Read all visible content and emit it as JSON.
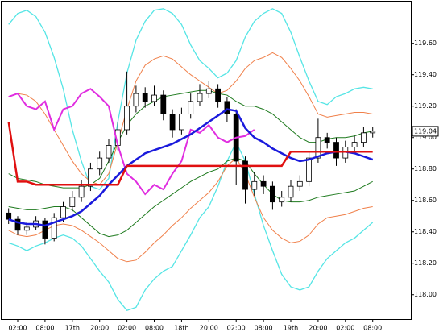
{
  "chart_data": {
    "type": "candlestick",
    "categories": [
      null,
      "02:00",
      null,
      null,
      "08:00",
      null,
      null,
      "17th",
      null,
      null,
      "20:00",
      null,
      null,
      "02:00",
      null,
      null,
      "08:00",
      null,
      null,
      "18th",
      null,
      null,
      "20:00",
      null,
      null,
      "02:00",
      null,
      null,
      "08:00",
      null,
      null,
      "19th",
      null,
      null,
      "20:00",
      null,
      null,
      "02:00",
      null,
      null,
      "08:00"
    ],
    "open": [
      118.52,
      118.48,
      118.41,
      118.43,
      118.47,
      118.36,
      118.49,
      118.56,
      118.62,
      118.69,
      118.8,
      118.87,
      118.95,
      119.05,
      119.2,
      119.28,
      119.23,
      119.27,
      119.15,
      119.05,
      119.15,
      119.23,
      119.28,
      119.31,
      119.23,
      119.15,
      118.85,
      118.67,
      118.72,
      118.69,
      118.59,
      118.62,
      118.69,
      118.72,
      118.87,
      119.0,
      118.97,
      118.87,
      118.94,
      118.97,
      119.03
    ],
    "high": [
      118.55,
      118.5,
      118.46,
      118.5,
      118.49,
      118.52,
      118.59,
      118.66,
      118.73,
      118.84,
      118.91,
      118.99,
      119.1,
      119.42,
      119.33,
      119.32,
      119.33,
      119.3,
      119.18,
      119.19,
      119.28,
      119.34,
      119.36,
      119.34,
      119.26,
      119.18,
      118.88,
      118.78,
      118.76,
      118.72,
      118.66,
      118.73,
      118.76,
      118.91,
      119.12,
      119.03,
      119.0,
      118.98,
      119.01,
      119.07,
      119.07
    ],
    "low": [
      118.45,
      118.38,
      118.38,
      118.41,
      118.32,
      118.34,
      118.46,
      118.53,
      118.59,
      118.66,
      118.76,
      118.84,
      118.92,
      119.02,
      119.16,
      119.19,
      119.2,
      119.11,
      119.0,
      119.02,
      119.12,
      119.2,
      119.25,
      119.19,
      119.1,
      118.7,
      118.58,
      118.63,
      118.64,
      118.54,
      118.56,
      118.59,
      118.66,
      118.69,
      118.84,
      118.93,
      118.82,
      118.84,
      118.91,
      118.94,
      119.0
    ],
    "close": [
      118.48,
      118.41,
      118.43,
      118.47,
      118.36,
      118.49,
      118.56,
      118.62,
      118.69,
      118.8,
      118.87,
      118.95,
      119.05,
      119.2,
      119.28,
      119.23,
      119.27,
      119.15,
      119.05,
      119.15,
      119.23,
      119.28,
      119.31,
      119.23,
      119.15,
      118.85,
      118.67,
      118.72,
      118.69,
      118.59,
      118.62,
      118.69,
      118.72,
      118.87,
      119.0,
      118.97,
      118.87,
      118.94,
      118.97,
      119.03,
      119.04
    ],
    "up_color": "#ffffff",
    "down_color": "#000000",
    "series": [
      {
        "color": "#55e5e5",
        "width": 1.3,
        "values": [
          119.72,
          119.79,
          119.81,
          119.77,
          119.67,
          119.51,
          119.31,
          119.05,
          118.85,
          118.69,
          118.67,
          118.74,
          119.1,
          119.41,
          119.62,
          119.74,
          119.81,
          119.82,
          119.79,
          119.72,
          119.59,
          119.49,
          119.44,
          119.38,
          119.41,
          119.49,
          119.64,
          119.74,
          119.79,
          119.82,
          119.79,
          119.67,
          119.51,
          119.36,
          119.23,
          119.21,
          119.26,
          119.28,
          119.31,
          119.32,
          119.31
        ]
      },
      {
        "color": "#55e5e5",
        "width": 1.3,
        "values": [
          118.33,
          118.31,
          118.28,
          118.31,
          118.33,
          118.36,
          118.38,
          118.36,
          118.31,
          118.23,
          118.15,
          118.08,
          117.97,
          117.9,
          117.92,
          118.03,
          118.1,
          118.15,
          118.18,
          118.28,
          118.38,
          118.49,
          118.56,
          118.69,
          118.85,
          118.97,
          118.85,
          118.64,
          118.44,
          118.28,
          118.13,
          118.05,
          118.03,
          118.05,
          118.15,
          118.23,
          118.28,
          118.33,
          118.36,
          118.41,
          118.46
        ]
      },
      {
        "color": "#f0804a",
        "width": 1,
        "values": [
          119.26,
          119.28,
          119.27,
          119.23,
          119.15,
          119.05,
          118.95,
          118.85,
          118.77,
          118.72,
          118.7,
          118.77,
          118.97,
          119.18,
          119.36,
          119.46,
          119.5,
          119.52,
          119.5,
          119.45,
          119.4,
          119.36,
          119.32,
          119.28,
          119.3,
          119.36,
          119.44,
          119.49,
          119.51,
          119.54,
          119.51,
          119.44,
          119.36,
          119.26,
          119.15,
          119.13,
          119.14,
          119.15,
          119.16,
          119.16,
          119.15
        ]
      },
      {
        "color": "#f0804a",
        "width": 1,
        "values": [
          118.41,
          118.38,
          118.37,
          118.38,
          118.41,
          118.44,
          118.45,
          118.44,
          118.41,
          118.37,
          118.33,
          118.28,
          118.23,
          118.21,
          118.22,
          118.27,
          118.33,
          118.38,
          118.44,
          118.49,
          118.55,
          118.6,
          118.65,
          118.72,
          118.82,
          118.87,
          118.77,
          118.62,
          118.49,
          118.41,
          118.36,
          118.33,
          118.34,
          118.38,
          118.45,
          118.49,
          118.5,
          118.51,
          118.53,
          118.55,
          118.56
        ]
      },
      {
        "color": "#1e7a1e",
        "width": 1,
        "values": [
          118.77,
          118.74,
          118.73,
          118.72,
          118.7,
          118.69,
          118.68,
          118.68,
          118.68,
          118.7,
          118.74,
          118.85,
          118.97,
          119.08,
          119.15,
          119.2,
          119.23,
          119.26,
          119.27,
          119.28,
          119.29,
          119.3,
          119.3,
          119.28,
          119.27,
          119.23,
          119.2,
          119.2,
          119.18,
          119.15,
          119.1,
          119.05,
          119.0,
          118.97,
          118.97,
          118.99,
          119.0,
          119.0,
          119.01,
          119.03,
          119.04
        ]
      },
      {
        "color": "#1e7a1e",
        "width": 1,
        "values": [
          118.56,
          118.55,
          118.54,
          118.54,
          118.55,
          118.56,
          118.56,
          118.54,
          118.49,
          118.44,
          118.39,
          118.37,
          118.38,
          118.41,
          118.46,
          118.51,
          118.56,
          118.6,
          118.64,
          118.68,
          118.72,
          118.75,
          118.78,
          118.8,
          118.85,
          118.87,
          118.85,
          118.77,
          118.7,
          118.64,
          118.6,
          118.59,
          118.59,
          118.6,
          118.62,
          118.63,
          118.64,
          118.65,
          118.66,
          118.69,
          118.72
        ]
      },
      {
        "color": "#e02de0",
        "width": 2,
        "values": [
          119.26,
          119.28,
          119.2,
          119.18,
          119.23,
          119.05,
          119.18,
          119.2,
          119.28,
          119.31,
          119.26,
          119.2,
          118.95,
          118.77,
          118.72,
          118.64,
          118.7,
          118.67,
          118.77,
          118.85,
          119.05,
          119.03,
          119.08,
          119.0,
          118.97,
          119.0,
          119.01,
          119.05,
          null,
          null,
          null,
          null,
          null,
          null,
          null,
          null,
          null,
          null,
          null,
          null,
          null
        ]
      },
      {
        "color": "#1a1adc",
        "width": 2.5,
        "values": [
          118.48,
          118.46,
          118.45,
          118.45,
          118.44,
          118.46,
          118.48,
          118.5,
          118.53,
          118.58,
          118.63,
          118.7,
          118.76,
          118.82,
          118.86,
          118.9,
          118.92,
          118.94,
          118.96,
          118.99,
          119.02,
          119.06,
          119.1,
          119.14,
          119.18,
          119.17,
          119.06,
          119.0,
          118.97,
          118.93,
          118.9,
          118.87,
          118.85,
          118.86,
          118.88,
          118.9,
          118.91,
          118.91,
          118.9,
          118.88,
          118.86
        ]
      },
      {
        "color": "#e01010",
        "width": 2.5,
        "values": [
          119.1,
          118.72,
          118.72,
          118.7,
          118.7,
          118.7,
          118.7,
          118.7,
          118.7,
          118.7,
          118.7,
          118.7,
          118.7,
          118.82,
          118.82,
          118.82,
          118.82,
          118.82,
          118.82,
          118.82,
          118.82,
          118.82,
          118.82,
          118.82,
          118.82,
          118.82,
          118.82,
          118.82,
          118.82,
          118.82,
          118.82,
          118.91,
          118.91,
          118.91,
          118.91,
          118.91,
          118.91,
          118.91,
          118.91,
          118.91,
          118.91
        ]
      }
    ],
    "last_price": {
      "value": 119.04,
      "label": "119.04"
    },
    "ylim": [
      117.85,
      119.86
    ],
    "yticks": [
      {
        "value": 118.0,
        "label": "118.00"
      },
      {
        "value": 118.2,
        "label": "118.20"
      },
      {
        "value": 118.4,
        "label": "118.40"
      },
      {
        "value": 118.6,
        "label": "118.60"
      },
      {
        "value": 118.8,
        "label": "118.80"
      },
      {
        "value": 119.0,
        "label": "119.00"
      },
      {
        "value": 119.2,
        "label": "119.20"
      },
      {
        "value": 119.4,
        "label": "119.40"
      },
      {
        "value": 119.6,
        "label": "119.60"
      }
    ]
  }
}
